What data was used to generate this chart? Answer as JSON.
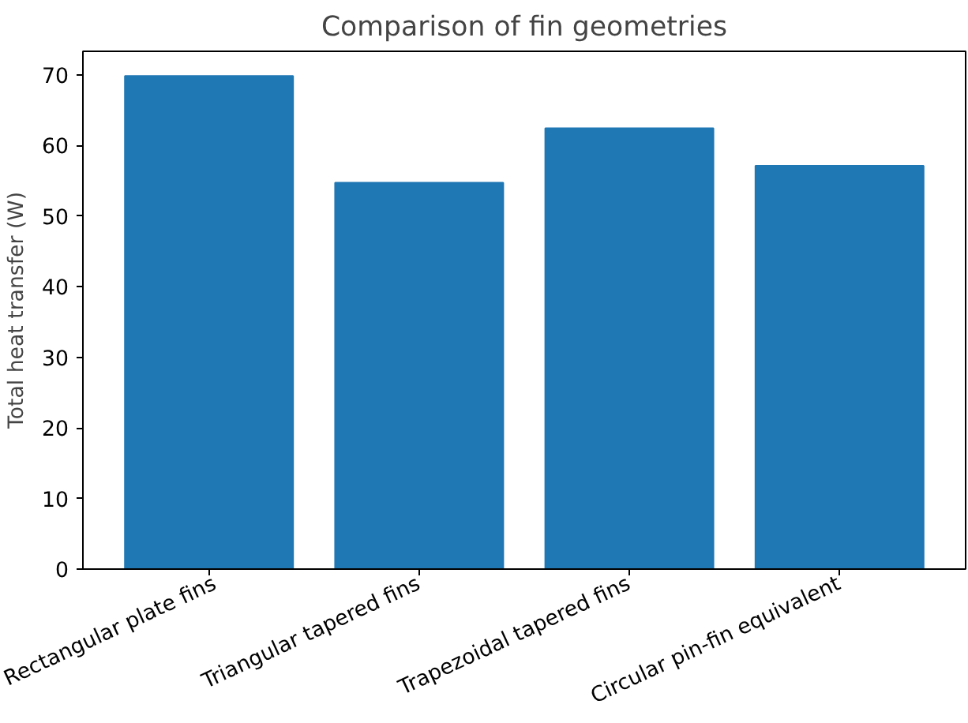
{
  "chart_data": {
    "type": "bar",
    "title": "Comparison of fin geometries",
    "ylabel": "Total heat transfer (W)",
    "categories": [
      "Rectangular plate fins",
      "Triangular tapered fins",
      "Trapezoidal tapered fins",
      "Circular pin-fin equivalent"
    ],
    "values": [
      69.8,
      54.7,
      62.4,
      57.1
    ],
    "color": "#1f77b4",
    "ylim": [
      0,
      73.3
    ],
    "yticks": [
      0,
      10,
      20,
      30,
      40,
      50,
      60,
      70
    ],
    "grid": false
  }
}
